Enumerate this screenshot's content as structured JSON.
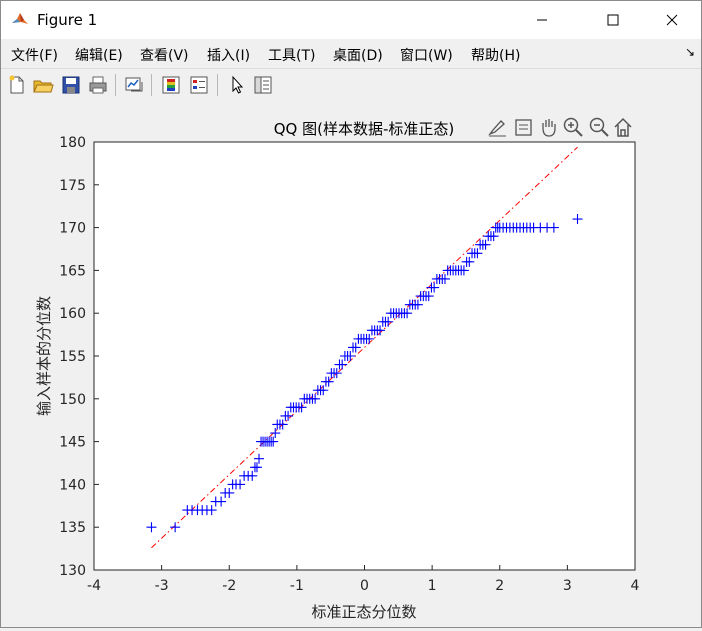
{
  "window": {
    "title": "Figure 1"
  },
  "menu": {
    "items": [
      "文件(F)",
      "编辑(E)",
      "查看(V)",
      "插入(I)",
      "工具(T)",
      "桌面(D)",
      "窗口(W)",
      "帮助(H)"
    ]
  },
  "toolbar": {
    "icons": [
      "new-figure-icon",
      "open-file-icon",
      "save-icon",
      "print-icon",
      "link-plot-icon",
      "colorbar-icon",
      "legend-icon",
      "pointer-icon",
      "property-inspector-icon"
    ]
  },
  "axes_toolbar": {
    "icons": [
      "brush-icon",
      "data-tips-icon",
      "pan-icon",
      "zoom-in-icon",
      "zoom-out-icon",
      "home-icon"
    ]
  },
  "colors": {
    "marker": "#0000ff",
    "reference_line": "#ff0000",
    "axes_bg": "#ffffff",
    "figure_bg": "#f0f0f0"
  },
  "chart_data": {
    "type": "scatter",
    "title": "QQ 图(样本数据-标准正态)",
    "xlabel": "标准正态分位数",
    "ylabel": "输入样本的分位数",
    "xlim": [
      -4,
      4
    ],
    "ylim": [
      130,
      180
    ],
    "xticks": [
      -4,
      -3,
      -2,
      -1,
      0,
      1,
      2,
      3,
      4
    ],
    "yticks": [
      130,
      135,
      140,
      145,
      150,
      155,
      160,
      165,
      170,
      175,
      180
    ],
    "grid": false,
    "marker": "+",
    "reference_line": {
      "style": "dash-dot",
      "x": [
        -3.15,
        3.15
      ],
      "y": [
        132.6,
        179.4
      ]
    },
    "series": [
      {
        "x": [
          -3.15,
          -2.8,
          -2.62,
          -2.55,
          -2.47,
          -2.4,
          -2.33,
          -2.26,
          -2.2,
          -2.12,
          -2.06,
          -2.0,
          -1.95,
          -1.9,
          -1.84,
          -1.78,
          -1.72,
          -1.66,
          -1.62,
          -1.59,
          -1.56,
          -1.53,
          -1.5,
          -1.47,
          -1.44,
          -1.41,
          -1.38,
          -1.35,
          -1.32,
          -1.29,
          -1.25,
          -1.21,
          -1.17,
          -1.13,
          -1.09,
          -1.05,
          -1.01,
          -0.97,
          -0.93,
          -0.89,
          -0.85,
          -0.81,
          -0.77,
          -0.73,
          -0.69,
          -0.65,
          -0.61,
          -0.57,
          -0.53,
          -0.49,
          -0.45,
          -0.41,
          -0.37,
          -0.33,
          -0.29,
          -0.25,
          -0.21,
          -0.17,
          -0.13,
          -0.09,
          -0.05,
          -0.01,
          0.03,
          0.07,
          0.11,
          0.15,
          0.19,
          0.23,
          0.27,
          0.31,
          0.35,
          0.39,
          0.43,
          0.47,
          0.51,
          0.55,
          0.59,
          0.63,
          0.67,
          0.71,
          0.75,
          0.79,
          0.83,
          0.87,
          0.91,
          0.95,
          0.99,
          1.03,
          1.07,
          1.11,
          1.15,
          1.19,
          1.23,
          1.27,
          1.31,
          1.35,
          1.39,
          1.43,
          1.47,
          1.51,
          1.55,
          1.59,
          1.63,
          1.67,
          1.71,
          1.75,
          1.79,
          1.83,
          1.87,
          1.91,
          1.94,
          1.97,
          2.0,
          2.05,
          2.1,
          2.15,
          2.2,
          2.25,
          2.3,
          2.35,
          2.4,
          2.45,
          2.5,
          2.6,
          2.7,
          2.8,
          3.15
        ],
        "y": [
          135,
          135,
          137,
          137,
          137,
          137,
          137,
          137,
          138,
          138,
          139,
          139,
          140,
          140,
          140,
          141,
          141,
          141,
          142,
          142,
          143,
          145,
          145,
          145,
          145,
          145,
          145,
          145,
          146,
          147,
          147,
          147,
          148,
          148,
          149,
          149,
          149,
          149,
          149,
          150,
          150,
          150,
          150,
          150,
          151,
          151,
          151,
          152,
          152,
          153,
          153,
          153,
          154,
          154,
          155,
          155,
          155,
          156,
          156,
          157,
          157,
          157,
          157,
          157,
          158,
          158,
          158,
          158,
          159,
          159,
          159,
          160,
          160,
          160,
          160,
          160,
          160,
          160,
          161,
          161,
          161,
          161,
          162,
          162,
          162,
          162,
          163,
          163,
          164,
          164,
          164,
          164,
          165,
          165,
          165,
          165,
          165,
          165,
          165,
          166,
          166,
          167,
          167,
          167,
          168,
          168,
          168,
          169,
          169,
          169,
          170,
          170,
          170,
          170,
          170,
          170,
          170,
          170,
          170,
          170,
          170,
          170,
          170,
          170,
          170,
          170,
          171
        ]
      }
    ]
  }
}
